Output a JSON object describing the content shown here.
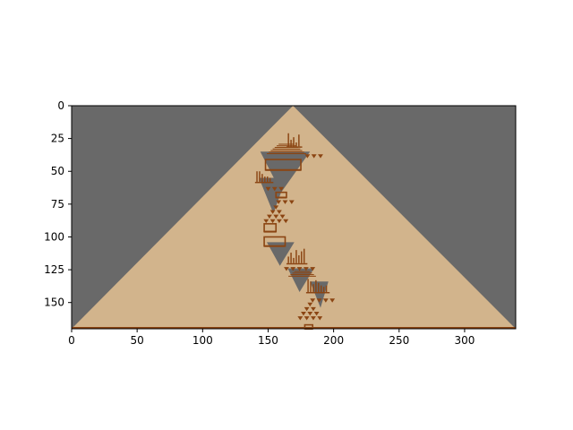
{
  "chart_data": {
    "type": "heatmap",
    "title": "",
    "xlabel": "",
    "ylabel": "",
    "x_ticks": [
      0,
      50,
      100,
      150,
      200,
      250,
      300
    ],
    "y_ticks": [
      0,
      25,
      50,
      75,
      100,
      125,
      150
    ],
    "xlim": [
      0,
      339
    ],
    "ylim": [
      170,
      0
    ],
    "grid": false,
    "colors": {
      "background": "#696969",
      "cell_off": "#d2b48c",
      "cell_on": "#8b4513"
    },
    "triangle": {
      "apex_x": 169,
      "apex_y": 0,
      "base_y": 170,
      "left_base_x": 0,
      "right_base_x": 339
    },
    "grey_regions": [
      [
        [
          144,
          35
        ],
        [
          182,
          35
        ],
        [
          160,
          66
        ]
      ],
      [
        [
          143,
          55
        ],
        [
          164,
          55
        ],
        [
          154,
          82
        ]
      ],
      [
        [
          149,
          104
        ],
        [
          170,
          104
        ],
        [
          159,
          122
        ]
      ],
      [
        [
          165,
          124
        ],
        [
          185,
          124
        ],
        [
          174,
          142
        ]
      ],
      [
        [
          182,
          134
        ],
        [
          196,
          134
        ],
        [
          190,
          154
        ]
      ]
    ],
    "structures": [
      {
        "type": "bars",
        "x": 165,
        "y": 27,
        "bars": [
          [
            0,
            10
          ],
          [
            2,
            5
          ],
          [
            4,
            7
          ],
          [
            6,
            3
          ],
          [
            8,
            9
          ]
        ]
      },
      {
        "type": "staircase",
        "x": 158,
        "y": 29,
        "rows": 7
      },
      {
        "type": "triangles",
        "x": 178,
        "y": 37,
        "count": 3
      },
      {
        "type": "box",
        "x": 148,
        "y": 41,
        "w": 27,
        "h": 8
      },
      {
        "type": "bars",
        "x": 141,
        "y": 54,
        "bars": [
          [
            0,
            8
          ],
          [
            2,
            8
          ],
          [
            4,
            6
          ],
          [
            6,
            4
          ],
          [
            8,
            4
          ],
          [
            10,
            3
          ]
        ]
      },
      {
        "type": "triangles",
        "x": 148,
        "y": 62,
        "count": 3
      },
      {
        "type": "box",
        "x": 156,
        "y": 66,
        "w": 8,
        "h": 4
      },
      {
        "type": "triangles",
        "x": 156,
        "y": 72,
        "count": 3
      },
      {
        "type": "triangle-stack",
        "x": 154,
        "y": 76,
        "levels": 4
      },
      {
        "type": "box",
        "x": 147,
        "y": 90,
        "w": 9,
        "h": 6
      },
      {
        "type": "box",
        "x": 147,
        "y": 100,
        "w": 16,
        "h": 7
      },
      {
        "type": "bars",
        "x": 165,
        "y": 116,
        "bars": [
          [
            0,
            5
          ],
          [
            2,
            8
          ],
          [
            4,
            4
          ],
          [
            6,
            10
          ],
          [
            8,
            6
          ],
          [
            10,
            9
          ],
          [
            12,
            11
          ]
        ]
      },
      {
        "type": "triangles",
        "x": 162,
        "y": 123,
        "count": 5
      },
      {
        "type": "staircase",
        "x": 170,
        "y": 126,
        "rows": 4
      },
      {
        "type": "bars",
        "x": 180,
        "y": 138,
        "bars": [
          [
            0,
            10
          ],
          [
            2,
            8
          ],
          [
            4,
            6
          ],
          [
            6,
            9
          ],
          [
            8,
            7
          ],
          [
            10,
            5
          ],
          [
            12,
            4
          ],
          [
            14,
            5
          ]
        ]
      },
      {
        "type": "triangles",
        "x": 182,
        "y": 147,
        "count": 4
      },
      {
        "type": "triangle-stack",
        "x": 180,
        "y": 150,
        "levels": 4
      },
      {
        "type": "box",
        "x": 178,
        "y": 167,
        "w": 6,
        "h": 3
      }
    ]
  }
}
